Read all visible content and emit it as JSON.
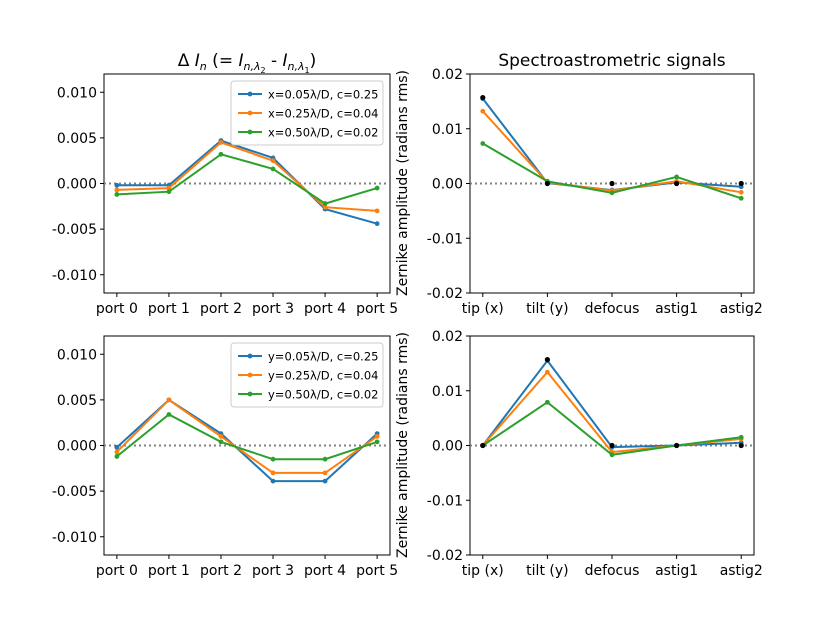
{
  "colors": {
    "series1": "#1f77b4",
    "series2": "#ff7f0e",
    "series3": "#2ca02c",
    "zero_line": "#808080",
    "markers": "#000000"
  },
  "chart_data": [
    {
      "id": "top-left",
      "type": "line",
      "title": "Δ I_n (= I_n,λ2 - I_n,λ1)",
      "xlabel": "",
      "ylabel": "",
      "categories": [
        "port 0",
        "port 1",
        "port 2",
        "port 3",
        "port 4",
        "port 5"
      ],
      "ylim": [
        -0.012,
        0.012
      ],
      "yticks": [
        "-0.010",
        "-0.005",
        "0.000",
        "0.005",
        "0.010"
      ],
      "ytick_values": [
        -0.01,
        -0.005,
        0,
        0.005,
        0.01
      ],
      "zero_line": true,
      "legend": "top-right",
      "series": [
        {
          "name": "x=0.05λ/D, c=0.25",
          "color": "#1f77b4",
          "values": [
            -0.0002,
            -0.0002,
            0.0047,
            0.0028,
            -0.0028,
            -0.0044
          ]
        },
        {
          "name": "x=0.25λ/D, c=0.04",
          "color": "#ff7f0e",
          "values": [
            -0.0007,
            -0.0005,
            0.0045,
            0.0025,
            -0.0026,
            -0.003
          ]
        },
        {
          "name": "x=0.50λ/D, c=0.02",
          "color": "#2ca02c",
          "values": [
            -0.0012,
            -0.0009,
            0.0032,
            0.0016,
            -0.0022,
            -0.0005
          ]
        }
      ]
    },
    {
      "id": "top-right",
      "type": "line",
      "title": "Spectroastrometric signals",
      "xlabel": "",
      "ylabel": "Zernike amplitude (radians rms)",
      "categories": [
        "tip (x)",
        "tilt (y)",
        "defocus",
        "astig1",
        "astig2"
      ],
      "ylim": [
        -0.02,
        0.02
      ],
      "yticks": [
        "-0.02",
        "-0.01",
        "0.00",
        "0.01",
        "0.02"
      ],
      "ytick_values": [
        -0.02,
        -0.01,
        0,
        0.01,
        0.02
      ],
      "zero_line": true,
      "series": [
        {
          "name": "x=0.05λ/D, c=0.25",
          "color": "#1f77b4",
          "values": [
            0.0155,
            0.0001,
            -0.0012,
            0.0002,
            -0.0006
          ]
        },
        {
          "name": "x=0.25λ/D, c=0.04",
          "color": "#ff7f0e",
          "values": [
            0.0132,
            0.0002,
            -0.0013,
            0.0004,
            -0.0016
          ]
        },
        {
          "name": "x=0.50λ/D, c=0.02",
          "color": "#2ca02c",
          "values": [
            0.0073,
            0.0004,
            -0.0017,
            0.0012,
            -0.0027
          ]
        }
      ],
      "black_points": [
        0.0157,
        0.0,
        0.0,
        0.0,
        0.0
      ]
    },
    {
      "id": "bottom-left",
      "type": "line",
      "title": "",
      "xlabel": "",
      "ylabel": "",
      "categories": [
        "port 0",
        "port 1",
        "port 2",
        "port 3",
        "port 4",
        "port 5"
      ],
      "ylim": [
        -0.012,
        0.012
      ],
      "yticks": [
        "-0.010",
        "-0.005",
        "0.000",
        "0.005",
        "0.010"
      ],
      "ytick_values": [
        -0.01,
        -0.005,
        0,
        0.005,
        0.01
      ],
      "zero_line": true,
      "legend": "top-right",
      "series": [
        {
          "name": "y=0.05λ/D, c=0.25",
          "color": "#1f77b4",
          "values": [
            -0.0002,
            0.005,
            0.0013,
            -0.0039,
            -0.0039,
            0.0013
          ]
        },
        {
          "name": "y=0.25λ/D, c=0.04",
          "color": "#ff7f0e",
          "values": [
            -0.0007,
            0.005,
            0.001,
            -0.003,
            -0.003,
            0.001
          ]
        },
        {
          "name": "y=0.50λ/D, c=0.02",
          "color": "#2ca02c",
          "values": [
            -0.0012,
            0.0034,
            0.0004,
            -0.0015,
            -0.0015,
            0.0004
          ]
        }
      ]
    },
    {
      "id": "bottom-right",
      "type": "line",
      "title": "",
      "xlabel": "",
      "ylabel": "Zernike amplitude (radians rms)",
      "categories": [
        "tip (x)",
        "tilt (y)",
        "defocus",
        "astig1",
        "astig2"
      ],
      "ylim": [
        -0.02,
        0.02
      ],
      "yticks": [
        "-0.02",
        "-0.01",
        "0.00",
        "0.01",
        "0.02"
      ],
      "ytick_values": [
        -0.02,
        -0.01,
        0,
        0.01,
        0.02
      ],
      "zero_line": true,
      "series": [
        {
          "name": "y=0.05λ/D, c=0.25",
          "color": "#1f77b4",
          "values": [
            0.0,
            0.0155,
            -0.0003,
            0.0,
            0.0005
          ]
        },
        {
          "name": "y=0.25λ/D, c=0.04",
          "color": "#ff7f0e",
          "values": [
            0.0,
            0.0134,
            -0.0012,
            0.0,
            0.0012
          ]
        },
        {
          "name": "y=0.50λ/D, c=0.02",
          "color": "#2ca02c",
          "values": [
            0.0,
            0.0079,
            -0.0017,
            0.0,
            0.0015
          ]
        }
      ],
      "black_points": [
        0.0,
        0.0157,
        0.0,
        0.0,
        0.0
      ]
    }
  ]
}
